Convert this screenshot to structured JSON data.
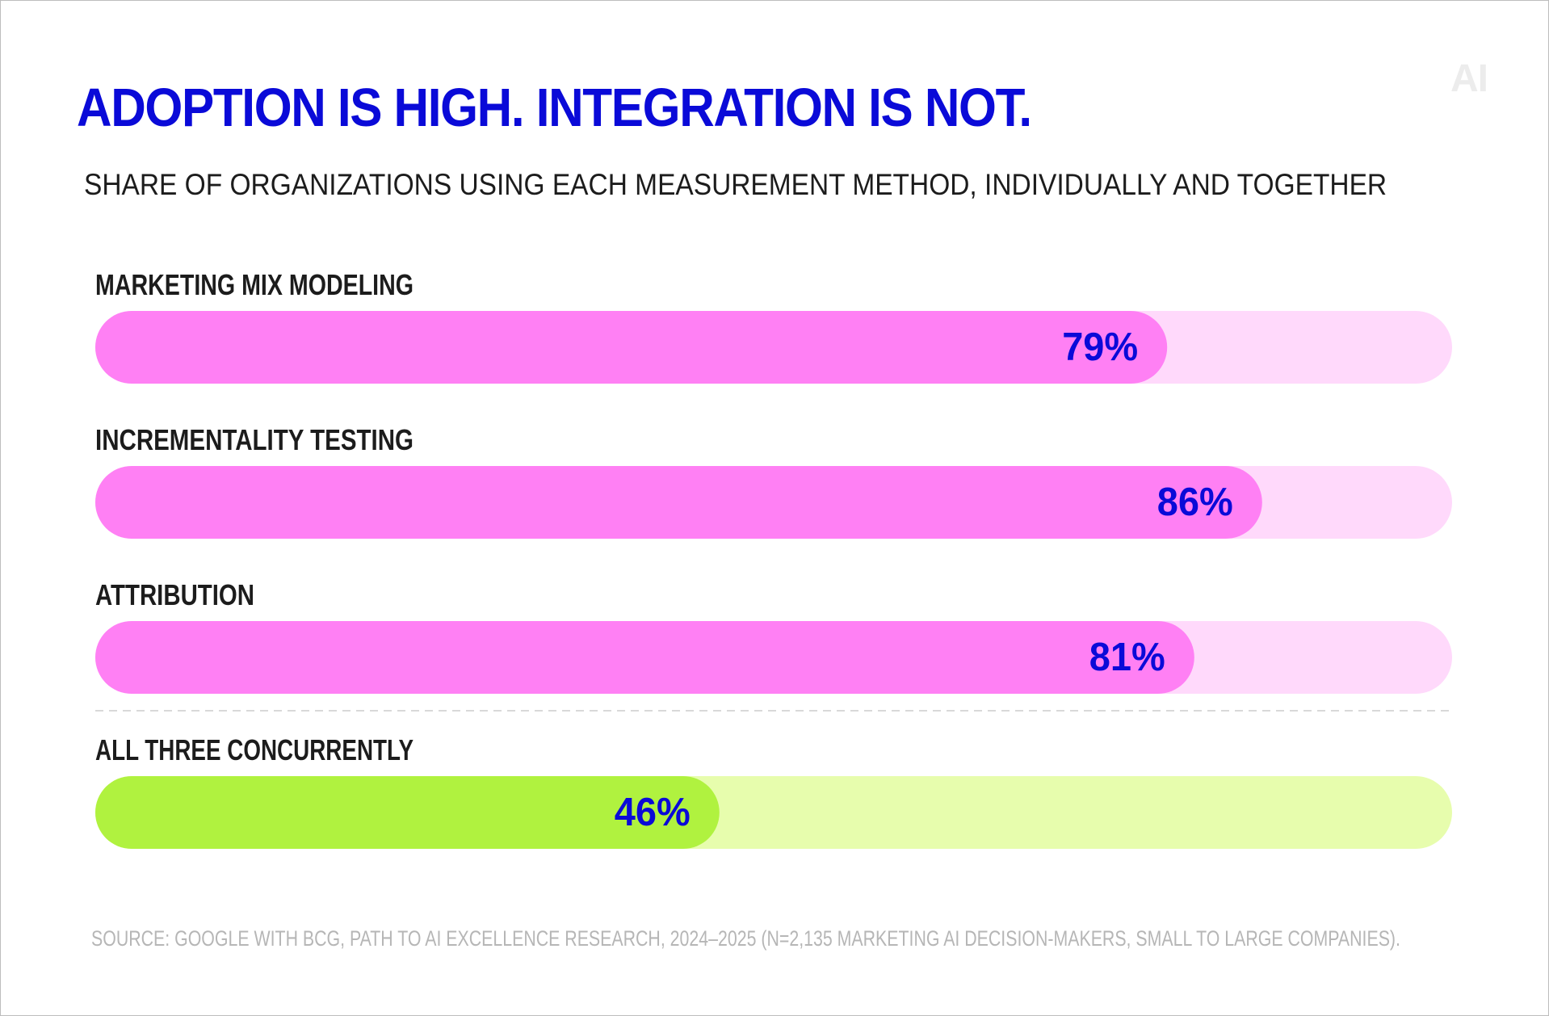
{
  "brand_logo": "AI",
  "title": "ADOPTION IS HIGH. INTEGRATION IS NOT.",
  "subtitle": "SHARE OF ORGANIZATIONS USING EACH MEASUREMENT METHOD, INDIVIDUALLY AND TOGETHER",
  "source": "SOURCE: GOOGLE WITH BCG, PATH TO AI EXCELLENCE RESEARCH, 2024–2025 (N=2,135 MARKETING AI DECISION-MAKERS, SMALL TO LARGE COMPANIES).",
  "colors": {
    "title": "#0a0ad8",
    "value_label": "#0a0ad8",
    "method_bar": "#ff80f4",
    "method_track": "#ffd9fb",
    "combined_bar": "#b0f23f",
    "combined_track": "#e7fdad"
  },
  "chart_data": {
    "type": "bar",
    "orientation": "horizontal",
    "unit": "%",
    "xlim": [
      0,
      100
    ],
    "grid": false,
    "legend": "none",
    "categories": [
      "MARKETING MIX MODELING",
      "INCREMENTALITY TESTING",
      "ATTRIBUTION",
      "ALL THREE CONCURRENTLY"
    ],
    "values": [
      79,
      86,
      81,
      46
    ],
    "value_labels": [
      "79%",
      "86%",
      "81%",
      "46%"
    ],
    "bar_kinds": [
      "method",
      "method",
      "method",
      "combined"
    ]
  }
}
